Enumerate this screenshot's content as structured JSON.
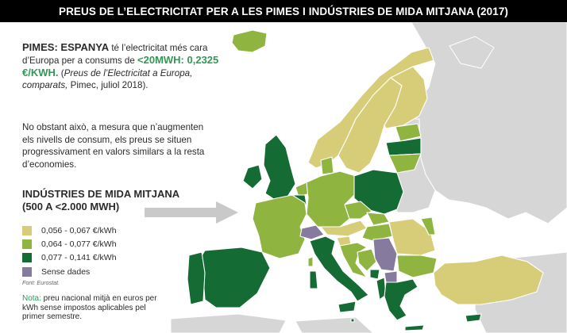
{
  "title": "PREUS DE L’ELECTRICITAT PER A LES PIMES I INDÚSTRIES DE MIDA MITJANA  (2017)",
  "intro": {
    "lead": "PIMES: ESPANYA",
    "text1": " té l’electricitat més cara d’Europa per a consums de ",
    "highlight": "<20MWH: 0,2325 €/KWH.",
    "text2": " (",
    "citation": "Preus de l’Electricitat a Europa, comparats,",
    "text3": " Pimec, juliol 2018)."
  },
  "paragraph2": "No obstant això, a mesura que n’augmenten els nivells de consum, els preus se situen progressivament en valors similars a la resta d’economies.",
  "legend": {
    "title_line1": "INDÚSTRIES DE MIDA MITJANA",
    "title_line2": "(500 A <2.000 MWH)",
    "items": [
      {
        "label": "0,056 - 0,067 €/kWh",
        "color": "#d7cd78"
      },
      {
        "label": "0,064 - 0,077 €/kWh",
        "color": "#8fb540"
      },
      {
        "label": "0,077 - 0,141 €/kWh",
        "color": "#146b34"
      },
      {
        "label": "Sense dades",
        "color": "#867a9e"
      }
    ]
  },
  "source": "Font: Eurostat.",
  "note": {
    "label": "Nota:",
    "text": " preu nacional mitjà en euros per kWh sense impostos aplicables pel primer semestre."
  },
  "colors": {
    "background": "#ffffff",
    "land_other": "#d6d6d6",
    "borders": "#ffffff",
    "arrow": "#c9c9c9",
    "accent_text": "#2f9a56"
  },
  "map_regions": [
    {
      "country": "Iceland",
      "category": "0,064 - 0,077 €/kWh"
    },
    {
      "country": "Norway",
      "category": "0,056 - 0,067 €/kWh"
    },
    {
      "country": "Sweden",
      "category": "0,056 - 0,067 €/kWh"
    },
    {
      "country": "Finland",
      "category": "0,056 - 0,067 €/kWh"
    },
    {
      "country": "Estonia",
      "category": "0,064 - 0,077 €/kWh"
    },
    {
      "country": "Latvia",
      "category": "0,077 - 0,141 €/kWh"
    },
    {
      "country": "Lithuania",
      "category": "0,064 - 0,077 €/kWh"
    },
    {
      "country": "United Kingdom",
      "category": "0,077 - 0,141 €/kWh"
    },
    {
      "country": "Ireland",
      "category": "0,077 - 0,141 €/kWh"
    },
    {
      "country": "Denmark",
      "category": "0,064 - 0,077 €/kWh"
    },
    {
      "country": "Netherlands",
      "category": "0,064 - 0,077 €/kWh"
    },
    {
      "country": "Belgium",
      "category": "0,077 - 0,141 €/kWh"
    },
    {
      "country": "Germany",
      "category": "0,064 - 0,077 €/kWh"
    },
    {
      "country": "Poland",
      "category": "0,077 - 0,141 €/kWh"
    },
    {
      "country": "France",
      "category": "0,064 - 0,077 €/kWh"
    },
    {
      "country": "Czechia",
      "category": "0,064 - 0,077 €/kWh"
    },
    {
      "country": "Slovakia",
      "category": "0,064 - 0,077 €/kWh"
    },
    {
      "country": "Austria",
      "category": "0,056 - 0,067 €/kWh"
    },
    {
      "country": "Hungary",
      "category": "0,064 - 0,077 €/kWh"
    },
    {
      "country": "Switzerland",
      "category": "Sense dades"
    },
    {
      "country": "Spain",
      "category": "0,077 - 0,141 €/kWh"
    },
    {
      "country": "Portugal",
      "category": "0,077 - 0,141 €/kWh"
    },
    {
      "country": "Italy",
      "category": "0,077 - 0,141 €/kWh"
    },
    {
      "country": "Slovenia",
      "category": "0,056 - 0,067 €/kWh"
    },
    {
      "country": "Croatia",
      "category": "0,064 - 0,077 €/kWh"
    },
    {
      "country": "Bosnia and Herzegovina",
      "category": "0,064 - 0,077 €/kWh"
    },
    {
      "country": "Serbia",
      "category": "Sense dades"
    },
    {
      "country": "Montenegro",
      "category": "0,077 - 0,141 €/kWh"
    },
    {
      "country": "Albania",
      "category": "0,077 - 0,141 €/kWh"
    },
    {
      "country": "North Macedonia",
      "category": "Sense dades"
    },
    {
      "country": "Romania",
      "category": "0,056 - 0,067 €/kWh"
    },
    {
      "country": "Moldova",
      "category": "0,064 - 0,077 €/kWh"
    },
    {
      "country": "Bulgaria",
      "category": "0,064 - 0,077 €/kWh"
    },
    {
      "country": "Greece",
      "category": "0,077 - 0,141 €/kWh"
    },
    {
      "country": "Turkey",
      "category": "0,056 - 0,067 €/kWh"
    },
    {
      "country": "Malta",
      "category": "0,077 - 0,141 €/kWh"
    },
    {
      "country": "Cyprus",
      "category": "0,077 - 0,141 €/kWh"
    }
  ]
}
